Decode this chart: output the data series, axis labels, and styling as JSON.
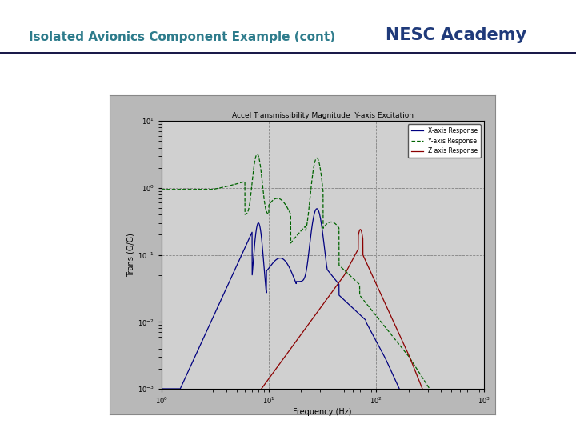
{
  "title_left": "Isolated Avionics Component Example (cont)",
  "title_right": "NESC Academy",
  "title_left_color": "#2e7c8c",
  "title_right_color": "#1f3a7a",
  "plot_title": "Accel Transmissibility Magnitude  Y-axis Excitation",
  "xlabel": "Frequency (Hz)",
  "ylabel": "Trans (G/G)",
  "bg_color": "#b8b8b8",
  "plot_bg_color": "#d0d0d0",
  "legend_labels": [
    "X-axis Response",
    "Y-axis Response",
    "Z axis Response"
  ],
  "line_color_x": "#000080",
  "line_color_y": "#006400",
  "line_color_z": "#8b0000",
  "grid_color": "#505050",
  "outer_panel": [
    0.19,
    0.04,
    0.67,
    0.74
  ],
  "inner_plot": [
    0.28,
    0.1,
    0.56,
    0.62
  ]
}
